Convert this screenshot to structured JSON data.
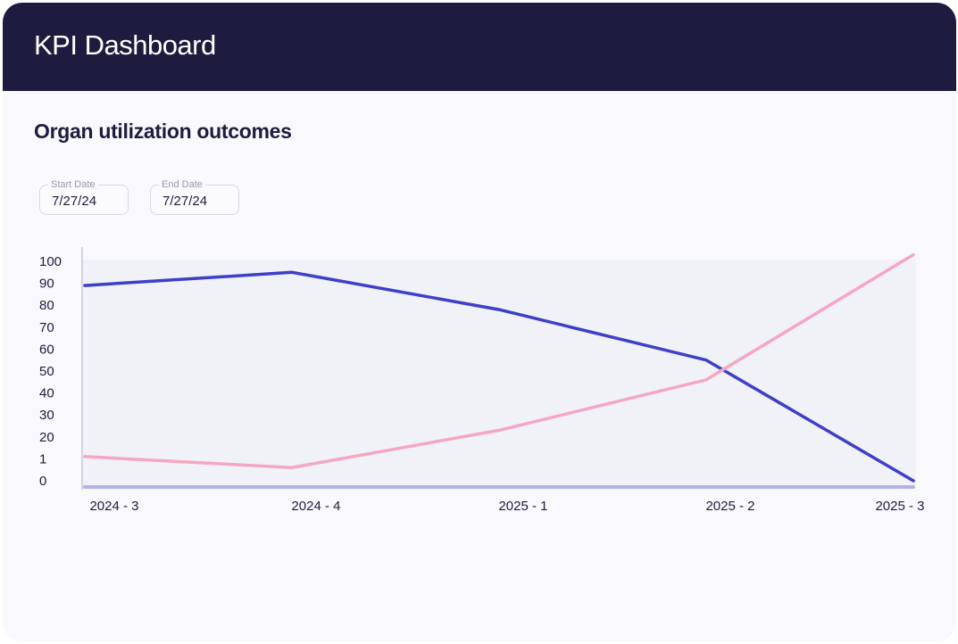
{
  "header": {
    "title": "KPI Dashboard"
  },
  "section": {
    "title": "Organ utilization outcomes"
  },
  "filters": {
    "start_date": {
      "label": "Start Date",
      "value": "7/27/24"
    },
    "end_date": {
      "label": "End Date",
      "value": "7/27/24"
    }
  },
  "colors": {
    "header_bg": "#1e1c3e",
    "series_blue": "#3d3fc9",
    "series_pink": "#f5a7bf",
    "baseline": "#b3b1e8"
  },
  "chart_data": {
    "type": "line",
    "categories": [
      "2024 - 3",
      "2024 - 4",
      "2025 - 1",
      "2025 - 2",
      "2025 - 3"
    ],
    "y_ticks": [
      "100",
      "90",
      "80",
      "70",
      "60",
      "50",
      "40",
      "30",
      "20",
      "1",
      "0"
    ],
    "series": [
      {
        "color": "#3d3fc9",
        "values": [
          89,
          95,
          78,
          55,
          0
        ]
      },
      {
        "color": "#f5a7bf",
        "values": [
          11,
          6,
          23,
          46,
          103
        ]
      },
      {
        "color": "#b3b1e8",
        "values": [
          0,
          0,
          0,
          0,
          0
        ]
      }
    ],
    "grid": false
  }
}
